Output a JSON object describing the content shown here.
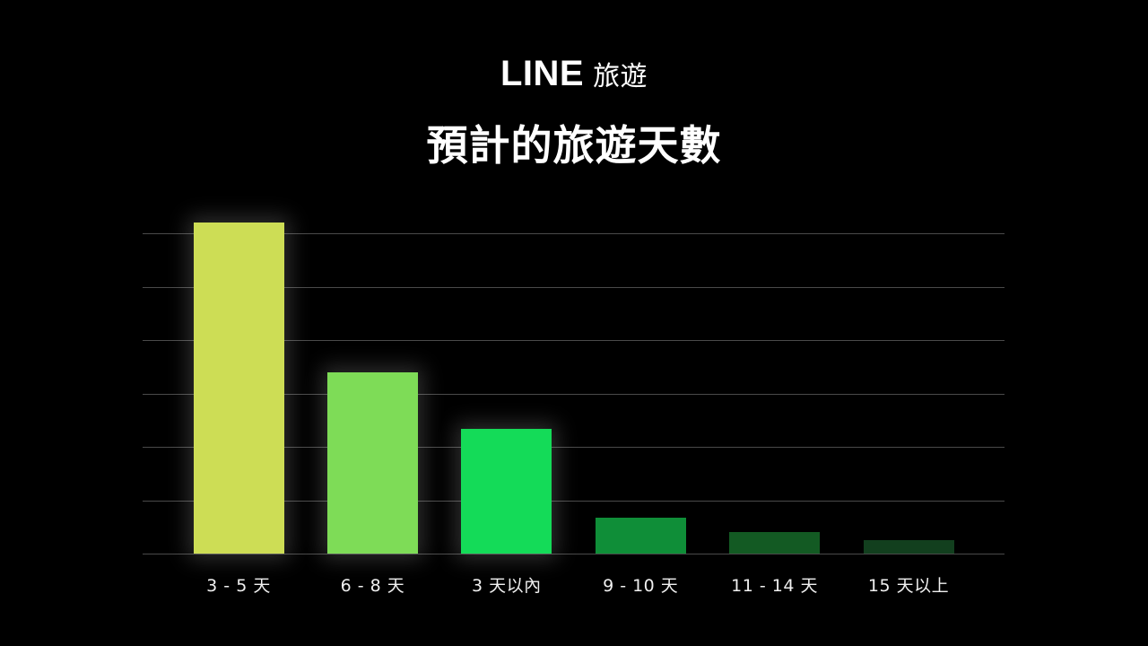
{
  "brand": {
    "line": "LINE",
    "sub": "旅遊"
  },
  "title": "預計的旅遊天數",
  "chart_data": {
    "type": "bar",
    "title": "預計的旅遊天數",
    "subtitle": "LINE 旅遊",
    "categories": [
      "3-5天",
      "6-8天",
      "3天以內",
      "9-10天",
      "11-14天",
      "15天以上"
    ],
    "display_labels": [
      "3 - 5 天",
      "6 - 8 天",
      "3 天以內",
      "9 - 10 天",
      "11 - 14 天",
      "15 天以上"
    ],
    "values": [
      62,
      34,
      23.4,
      6.7,
      4,
      2.5
    ],
    "colors": [
      "#CDDD55",
      "#7EDC57",
      "#14DB58",
      "#0F8E38",
      "#135A23",
      "#123F1E"
    ],
    "glow": [
      true,
      true,
      true,
      false,
      false,
      false
    ],
    "xlabel": "",
    "ylabel": "",
    "ylim": [
      0,
      60
    ],
    "y_gridlines": [
      0,
      10,
      20,
      30,
      40,
      50,
      60
    ],
    "y_tick_labels_visible": false,
    "grid": true,
    "legend": "none",
    "background": "#000000"
  }
}
